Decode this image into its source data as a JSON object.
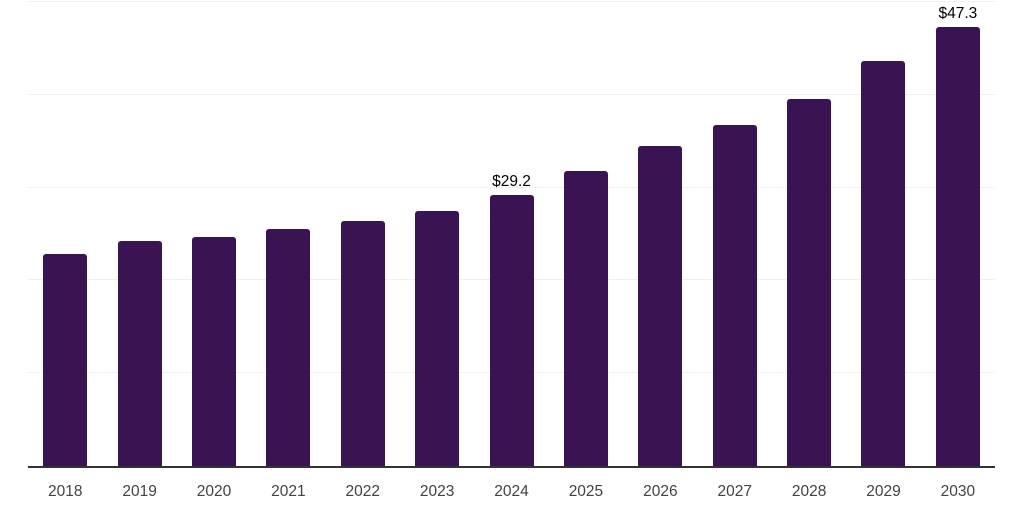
{
  "chart_data": {
    "type": "bar",
    "title": "",
    "categories": [
      "2018",
      "2019",
      "2020",
      "2021",
      "2022",
      "2023",
      "2024",
      "2025",
      "2026",
      "2027",
      "2028",
      "2029",
      "2030"
    ],
    "values": [
      22.8,
      24.2,
      24.7,
      25.5,
      26.4,
      27.5,
      29.2,
      31.8,
      34.5,
      36.8,
      39.6,
      43.6,
      47.3
    ],
    "annotations": [
      {
        "category": "2024",
        "text": "$29.2"
      },
      {
        "category": "2030",
        "text": "$47.3"
      }
    ],
    "xlabel": "",
    "ylabel": "",
    "ylim": [
      0,
      50
    ],
    "gridline_step": 10,
    "grid": "horizontal-only",
    "legend": "none",
    "value_prefix": "$"
  },
  "colors": {
    "bar": "#3A1352",
    "axis_line": "#333333",
    "gridline": "#f0f0f0",
    "x_label_text": "#424242",
    "annotation_text": "#000000",
    "background": "#ffffff"
  }
}
